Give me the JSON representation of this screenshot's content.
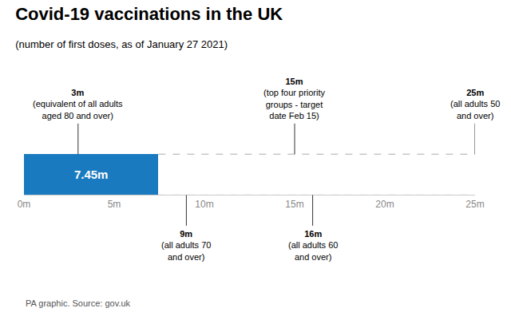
{
  "chart_data": {
    "type": "bar",
    "orientation": "horizontal",
    "title": "Covid-19 vaccinations in the UK",
    "subtitle": "(number of first doses, as of January 27 2021)",
    "source": "PA graphic. Source: gov.uk",
    "categories": [
      null
    ],
    "values": [
      7.45
    ],
    "value_labels": [
      "7.45m"
    ],
    "data_labels": true,
    "color": "#1a7abf",
    "xlim": [
      0,
      25
    ],
    "xticks": [
      {
        "value": 0,
        "label": "0m"
      },
      {
        "value": 5,
        "label": "5m"
      },
      {
        "value": 10,
        "label": "10m"
      },
      {
        "value": 15,
        "label": "15m"
      },
      {
        "value": 20,
        "label": "20m"
      },
      {
        "value": 25,
        "label": "25m"
      }
    ],
    "grid": false,
    "annotations": [
      {
        "x": 3,
        "label": "3m",
        "text": "(equivalent of all adults\naged 80 and over)",
        "side": "top"
      },
      {
        "x": 15,
        "label": "15m",
        "text": "(top four priority\ngroups - target\ndate Feb 15)",
        "side": "top"
      },
      {
        "x": 25,
        "label": "25m",
        "text": "(all adults 50\nand over)",
        "side": "top"
      },
      {
        "x": 9,
        "label": "9m",
        "text": "(all adults 70\nand over)",
        "side": "bottom"
      },
      {
        "x": 16,
        "label": "16m",
        "text": "(all adults 60\nand over)",
        "side": "bottom"
      }
    ]
  }
}
